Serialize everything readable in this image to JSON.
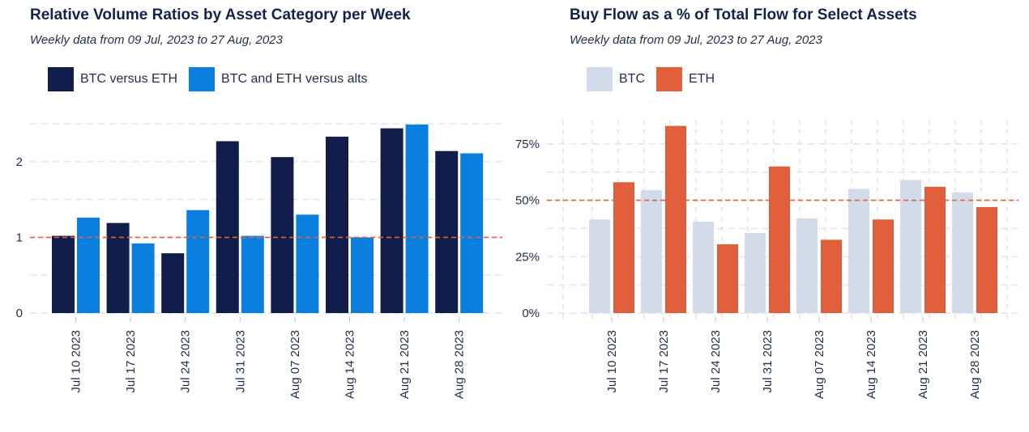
{
  "chart_data": [
    {
      "type": "bar",
      "title": "Relative Volume Ratios by Asset Category per Week",
      "subtitle": "Weekly data from 09 Jul, 2023 to 27 Aug, 2023",
      "categories": [
        "Jul 10 2023",
        "Jul 17 2023",
        "Jul 24 2023",
        "Jul 31 2023",
        "Aug 07 2023",
        "Aug 14 2023",
        "Aug 21 2023",
        "Aug 28 2023"
      ],
      "series": [
        {
          "name": "BTC versus ETH",
          "color": "#111d4a",
          "values": [
            1.02,
            1.19,
            0.79,
            2.27,
            2.06,
            2.33,
            2.44,
            2.14
          ]
        },
        {
          "name": "BTC and ETH versus alts",
          "color": "#0a7fe0",
          "values": [
            1.26,
            0.92,
            1.36,
            1.02,
            1.3,
            1.0,
            2.49,
            2.11
          ]
        }
      ],
      "ylim": [
        0,
        2.5
      ],
      "yticks": [
        0,
        1,
        2
      ],
      "ytick_labels": [
        "0",
        "1",
        "2"
      ],
      "reference_line": 1,
      "reference_color": "#e0603c",
      "xlabel": "",
      "ylabel": ""
    },
    {
      "type": "bar",
      "title": "Buy Flow as a % of Total Flow for Select Assets",
      "subtitle": "Weekly data from 09 Jul, 2023 to 27 Aug, 2023",
      "categories": [
        "Jul 10 2023",
        "Jul 17 2023",
        "Jul 24 2023",
        "Jul 31 2023",
        "Aug 07 2023",
        "Aug 14 2023",
        "Aug 21 2023",
        "Aug 28 2023"
      ],
      "series": [
        {
          "name": "BTC",
          "color": "#d1dbe9",
          "values": [
            41.5,
            54.5,
            40.5,
            35.5,
            42,
            55,
            59,
            53.5
          ]
        },
        {
          "name": "ETH",
          "color": "#e0603c",
          "values": [
            58,
            83,
            30.5,
            65,
            32.5,
            41.5,
            56,
            47
          ]
        }
      ],
      "ylim": [
        0,
        85
      ],
      "yticks": [
        0,
        25,
        50,
        75
      ],
      "ytick_labels": [
        "0%",
        "25%",
        "50%",
        "75%"
      ],
      "reference_line": 50,
      "reference_color": "#e0603c",
      "xlabel": "",
      "ylabel": ""
    }
  ]
}
